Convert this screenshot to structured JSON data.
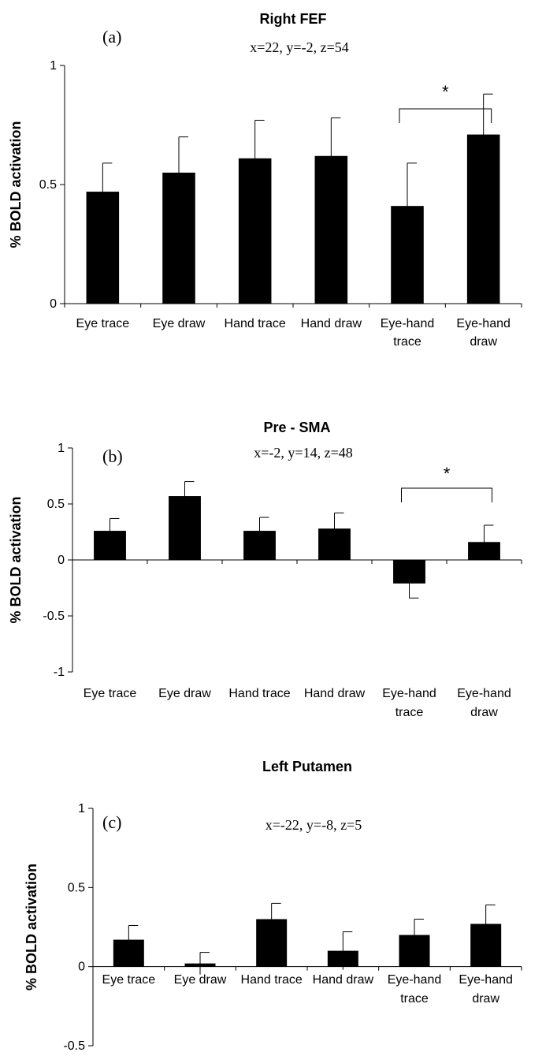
{
  "chart_data": [
    {
      "type": "bar",
      "title": "Right FEF",
      "panel_label": "(a)",
      "coords": "x=22, y=-2, z=54",
      "ylabel": "% BOLD activation",
      "ylim": [
        0,
        1
      ],
      "yticks": [
        "0",
        "0.5",
        "1"
      ],
      "ytick_values": [
        0,
        0.5,
        1
      ],
      "categories": [
        [
          "Eye trace"
        ],
        [
          "Eye draw"
        ],
        [
          "Hand trace"
        ],
        [
          "Hand draw"
        ],
        [
          "Eye-hand",
          "trace"
        ],
        [
          "Eye-hand",
          "draw"
        ]
      ],
      "values": [
        0.47,
        0.55,
        0.61,
        0.62,
        0.41,
        0.71
      ],
      "errors": [
        0.12,
        0.15,
        0.16,
        0.16,
        0.18,
        0.17
      ],
      "significance": {
        "from": 4,
        "to": 5,
        "label": "*"
      },
      "color": "#000000"
    },
    {
      "type": "bar",
      "title": "Pre - SMA",
      "panel_label": "(b)",
      "coords": "x=-2, y=14, z=48",
      "ylabel": "% BOLD activation",
      "ylim": [
        -1,
        1
      ],
      "yticks": [
        "-1",
        "-0.5",
        "0",
        "0.5",
        "1"
      ],
      "ytick_values": [
        -1,
        -0.5,
        0,
        0.5,
        1
      ],
      "categories": [
        [
          "Eye trace"
        ],
        [
          "Eye draw"
        ],
        [
          "Hand trace"
        ],
        [
          "Hand draw"
        ],
        [
          "Eye-hand",
          "trace"
        ],
        [
          "Eye-hand",
          "draw"
        ]
      ],
      "values": [
        0.26,
        0.57,
        0.26,
        0.28,
        -0.21,
        0.16
      ],
      "errors": [
        0.11,
        0.13,
        0.12,
        0.14,
        0.13,
        0.15
      ],
      "significance": {
        "from": 4,
        "to": 5,
        "label": "*"
      },
      "color": "#000000"
    },
    {
      "type": "bar",
      "title": "Left Putamen",
      "panel_label": "(c)",
      "coords": "x=-22, y=-8, z=5",
      "ylabel": "% BOLD activation",
      "ylim": [
        -0.5,
        1
      ],
      "yticks": [
        "-0.5",
        "0",
        "0.5",
        "1"
      ],
      "ytick_values": [
        -0.5,
        0,
        0.5,
        1
      ],
      "categories": [
        [
          "Eye trace"
        ],
        [
          "Eye draw"
        ],
        [
          "Hand trace"
        ],
        [
          "Hand draw"
        ],
        [
          "Eye-hand",
          "trace"
        ],
        [
          "Eye-hand",
          "draw"
        ]
      ],
      "values": [
        0.17,
        0.02,
        0.3,
        0.1,
        0.2,
        0.27
      ],
      "errors": [
        0.09,
        0.07,
        0.1,
        0.12,
        0.1,
        0.12
      ],
      "significance": null,
      "color": "#000000"
    }
  ]
}
